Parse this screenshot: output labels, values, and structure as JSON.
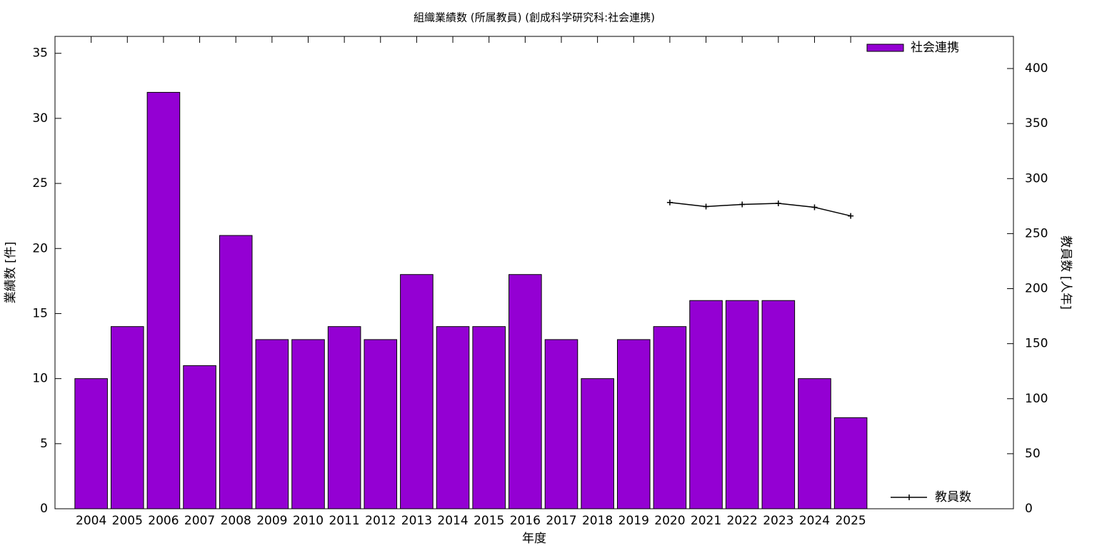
{
  "chart_data": {
    "type": "bar",
    "title": "組織業績数 (所属教員) (創成科学研究科:社会連携)",
    "x_label": "年度",
    "y_label": "業績数 [件]",
    "y2_label": "教員数 [人年]",
    "categories": [
      "2004",
      "2005",
      "2006",
      "2007",
      "2008",
      "2009",
      "2010",
      "2011",
      "2012",
      "2013",
      "2014",
      "2015",
      "2016",
      "2017",
      "2018",
      "2019",
      "2020",
      "2021",
      "2022",
      "2023",
      "2024",
      "2025"
    ],
    "series": [
      {
        "name": "社会連携",
        "type": "bar",
        "color": "#9400d3",
        "legend_corner": "top right",
        "values": [
          10,
          14,
          32,
          11,
          21,
          13,
          13,
          14,
          13,
          18,
          14,
          14,
          18,
          13,
          10,
          13,
          14,
          16,
          16,
          16,
          10,
          7
        ]
      },
      {
        "name": "教員数",
        "type": "line",
        "axis": "y2",
        "color": "#000000",
        "legend_corner": "bottom right",
        "values": [
          null,
          null,
          null,
          null,
          null,
          null,
          null,
          null,
          null,
          null,
          null,
          null,
          null,
          null,
          null,
          null,
          278.3,
          274.6,
          276.5,
          277.5,
          273.9,
          266.1
        ]
      }
    ],
    "ylim": [
      0,
      36.3
    ],
    "yticks": [
      0,
      5,
      10,
      15,
      20,
      25,
      30,
      35
    ],
    "y2lim": [
      0,
      429.2
    ],
    "y2ticks": [
      0,
      50,
      100,
      150,
      200,
      250,
      300,
      350,
      400
    ],
    "grid": false
  }
}
